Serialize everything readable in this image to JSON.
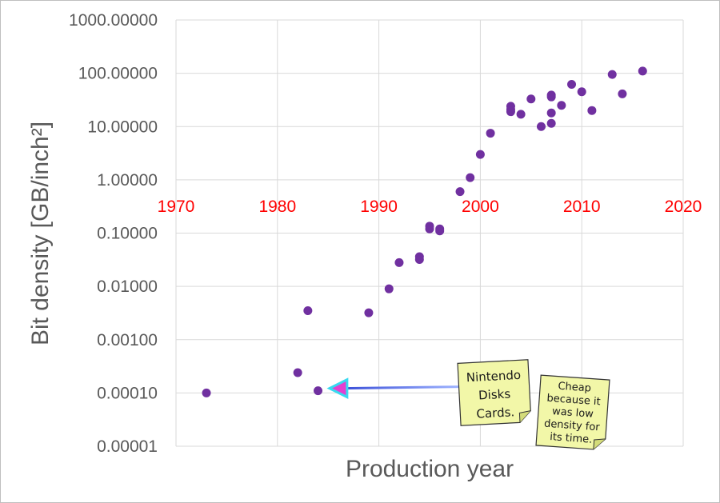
{
  "chart_data": {
    "type": "scatter",
    "title": "",
    "xlabel": "Production year",
    "ylabel": "Bit density [GB/inch²]",
    "xlim": [
      1970,
      2020
    ],
    "x_ticks": [
      "1970",
      "1980",
      "1990",
      "2000",
      "2010",
      "2020"
    ],
    "ylim": [
      1e-05,
      1000
    ],
    "y_scale": "log",
    "y_ticks": [
      {
        "value": 1000,
        "label": "1000.00000"
      },
      {
        "value": 100,
        "label": "100.00000"
      },
      {
        "value": 10,
        "label": "10.00000"
      },
      {
        "value": 1,
        "label": "1.00000"
      },
      {
        "value": 0.1,
        "label": "0.10000"
      },
      {
        "value": 0.01,
        "label": "0.01000"
      },
      {
        "value": 0.001,
        "label": "0.00100"
      },
      {
        "value": 0.0001,
        "label": "0.00010"
      },
      {
        "value": 1e-05,
        "label": "0.00001"
      }
    ],
    "grid": true,
    "marker_color": "#7030a0",
    "tick_label_color_x": "#ff0000",
    "points": [
      {
        "x": 1973,
        "y": 0.0001
      },
      {
        "x": 1982,
        "y": 0.00024
      },
      {
        "x": 1983,
        "y": 0.0035
      },
      {
        "x": 1984,
        "y": 0.00011
      },
      {
        "x": 1989,
        "y": 0.0032
      },
      {
        "x": 1991,
        "y": 0.009
      },
      {
        "x": 1992,
        "y": 0.028
      },
      {
        "x": 1994,
        "y": 0.032
      },
      {
        "x": 1994,
        "y": 0.036
      },
      {
        "x": 1995,
        "y": 0.12
      },
      {
        "x": 1995,
        "y": 0.135
      },
      {
        "x": 1996,
        "y": 0.11
      },
      {
        "x": 1996,
        "y": 0.12
      },
      {
        "x": 1998,
        "y": 0.6
      },
      {
        "x": 1999,
        "y": 1.1
      },
      {
        "x": 2000,
        "y": 3.0
      },
      {
        "x": 2001,
        "y": 7.5
      },
      {
        "x": 2003,
        "y": 19
      },
      {
        "x": 2003,
        "y": 21
      },
      {
        "x": 2003,
        "y": 24
      },
      {
        "x": 2004,
        "y": 17
      },
      {
        "x": 2005,
        "y": 33
      },
      {
        "x": 2006,
        "y": 10
      },
      {
        "x": 2007,
        "y": 11.5
      },
      {
        "x": 2007,
        "y": 18
      },
      {
        "x": 2007,
        "y": 36
      },
      {
        "x": 2007,
        "y": 39
      },
      {
        "x": 2008,
        "y": 25
      },
      {
        "x": 2009,
        "y": 62
      },
      {
        "x": 2010,
        "y": 45
      },
      {
        "x": 2011,
        "y": 20
      },
      {
        "x": 2013,
        "y": 95
      },
      {
        "x": 2014,
        "y": 41
      },
      {
        "x": 2016,
        "y": 110
      }
    ],
    "annotations": [
      {
        "lines": [
          "Nintendo",
          "Disks",
          "Cards."
        ],
        "note_color": "#f2f7a8",
        "points_to": {
          "x": 1984.5,
          "y": 0.00011
        }
      },
      {
        "lines": [
          "Cheap",
          "because it",
          "was low",
          "density for",
          "its time."
        ],
        "note_color": "#f2f7a8"
      }
    ]
  }
}
